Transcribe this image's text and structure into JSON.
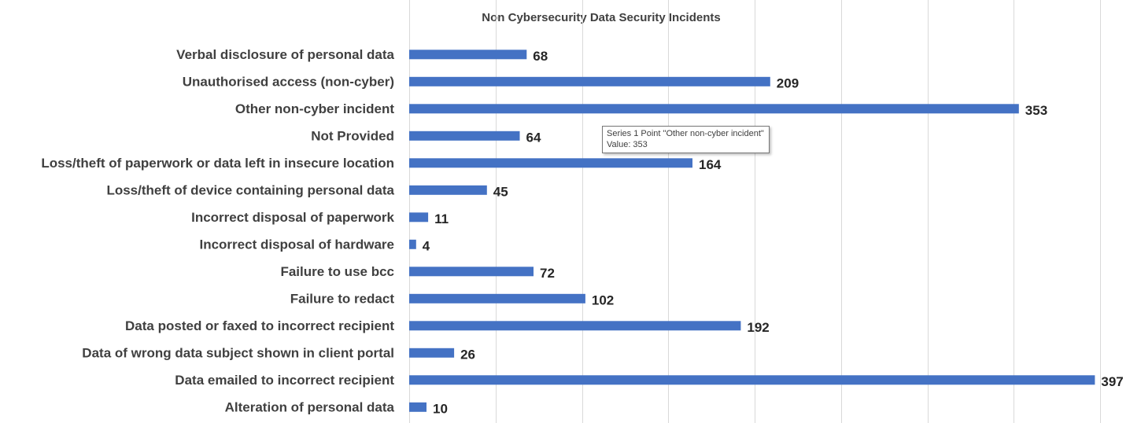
{
  "chart_data": {
    "type": "bar",
    "orientation": "horizontal",
    "title": "Non Cybersecurity Data Security Incidents",
    "categories": [
      "Verbal disclosure of personal data",
      "Unauthorised access (non-cyber)",
      "Other non-cyber incident",
      "Not Provided",
      "Loss/theft of paperwork or data left in insecure location",
      "Loss/theft of device containing personal data",
      "Incorrect disposal of paperwork",
      "Incorrect disposal of hardware",
      "Failure to use bcc",
      "Failure to redact",
      "Data posted or faxed to incorrect recipient",
      "Data of wrong data subject shown in client portal",
      "Data emailed to incorrect recipient",
      "Alteration of personal data"
    ],
    "values": [
      68,
      209,
      353,
      64,
      164,
      45,
      11,
      4,
      72,
      102,
      192,
      26,
      397,
      10
    ],
    "xlim": [
      0,
      400
    ],
    "x_major_unit": 50,
    "grid": true,
    "data_labels": true,
    "bar_color": "#4472C4"
  },
  "tooltip": {
    "line1": "Series 1 Point \"Other non-cyber incident\"",
    "line2": "Value: 353"
  }
}
